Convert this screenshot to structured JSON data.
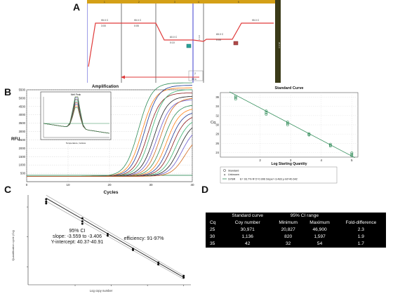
{
  "panel_labels": {
    "a": "A",
    "b": "B",
    "c": "C",
    "d": "D"
  },
  "panel_a": {
    "segment_numbers": [
      "1",
      "2",
      "3",
      "4",
      "5"
    ],
    "steps": [
      {
        "temp": "95.0 C",
        "time": "3:00"
      },
      {
        "temp": "95.0 C",
        "time": "0:05"
      },
      {
        "temp": "60.0 C",
        "time": "0:10"
      },
      {
        "temp": "65.0 C",
        "time": "0:05"
      },
      {
        "temp": "95.0 C",
        "time": ""
      }
    ],
    "loop_label": "2",
    "loop_count": "39 x",
    "gradient_label": "0.5 C",
    "end_label": "95.0 C"
  },
  "amplification": {
    "title": "Amplification",
    "ylabel": "RFU",
    "xlabel": "Cycles",
    "y_ticks": [
      "500",
      "1000",
      "1500",
      "2000",
      "2500",
      "3000",
      "3500",
      "4000",
      "4500",
      "5000",
      "5500"
    ],
    "x_ticks": [
      "0",
      "10",
      "20",
      "30",
      "40"
    ],
    "inset_title": "Melt Peak",
    "inset_xlabel": "Temperature, Celsius"
  },
  "standard_curve_b": {
    "title": "Standard Curve",
    "ylabel": "Cq",
    "xlabel": "Log Starting Quantity",
    "legend": {
      "standard": "Standard",
      "unknown": "Unknown",
      "series": "SYBR",
      "equation": "E= 93.7% R^2=0.996 Slope=-3.483 y-int=40.642"
    }
  },
  "chart_data": [
    {
      "type": "line",
      "title": "Amplification",
      "xlabel": "Cycles",
      "ylabel": "RFU",
      "xlim": [
        0,
        40
      ],
      "ylim": [
        0,
        5500
      ],
      "x_ticks": [
        0,
        10,
        20,
        30,
        40
      ],
      "y_ticks": [
        500,
        1000,
        1500,
        2000,
        2500,
        3000,
        3500,
        4000,
        4500,
        5000,
        5500
      ],
      "threshold": 380,
      "colors": [
        "#2e8b57",
        "#ff7f0e",
        "#1f3a93",
        "#8b1a1a",
        "#3cb371",
        "#222222",
        "#6a5acd",
        "#d2691e"
      ],
      "series": [
        {
          "midpoint": 27.0,
          "plateau": 5600
        },
        {
          "midpoint": 27.8,
          "plateau": 5300
        },
        {
          "midpoint": 28.5,
          "plateau": 5450
        },
        {
          "midpoint": 29.2,
          "plateau": 5000
        },
        {
          "midpoint": 30.0,
          "plateau": 5200
        },
        {
          "midpoint": 30.8,
          "plateau": 4800
        },
        {
          "midpoint": 31.5,
          "plateau": 4600
        },
        {
          "midpoint": 32.3,
          "plateau": 4700
        },
        {
          "midpoint": 33.0,
          "plateau": 4300
        },
        {
          "midpoint": 33.8,
          "plateau": 4100
        },
        {
          "midpoint": 34.5,
          "plateau": 3900
        },
        {
          "midpoint": 35.2,
          "plateau": 3700
        },
        {
          "midpoint": 36.0,
          "plateau": 3500
        },
        {
          "midpoint": 36.8,
          "plateau": 3300
        },
        {
          "midpoint": 37.5,
          "plateau": 3000
        },
        {
          "midpoint": 38.2,
          "plateau": 2500
        }
      ]
    },
    {
      "type": "scatter",
      "title": "Standard Curve",
      "xlabel": "Log Starting Quantity",
      "ylabel": "Cq",
      "xlim": [
        0.7,
        5.2
      ],
      "ylim": [
        23,
        37
      ],
      "x_ticks": [
        2,
        3,
        4,
        5
      ],
      "y_ticks": [
        24,
        26,
        28,
        30,
        32,
        34,
        36
      ],
      "fit": {
        "slope": -3.483,
        "intercept": 40.642
      },
      "points": [
        {
          "x": 1.2,
          "y": 35.6
        },
        {
          "x": 1.2,
          "y": 36.2
        },
        {
          "x": 1.2,
          "y": 35.9
        },
        {
          "x": 2.2,
          "y": 33.0
        },
        {
          "x": 2.2,
          "y": 32.6
        },
        {
          "x": 2.2,
          "y": 32.3
        },
        {
          "x": 2.9,
          "y": 30.6
        },
        {
          "x": 2.9,
          "y": 30.3
        },
        {
          "x": 2.9,
          "y": 30.0
        },
        {
          "x": 3.6,
          "y": 28.1
        },
        {
          "x": 3.6,
          "y": 27.8
        },
        {
          "x": 3.6,
          "y": 27.9
        },
        {
          "x": 4.3,
          "y": 25.8
        },
        {
          "x": 4.3,
          "y": 25.4
        },
        {
          "x": 4.3,
          "y": 25.6
        },
        {
          "x": 5.0,
          "y": 23.6
        },
        {
          "x": 5.0,
          "y": 23.3
        },
        {
          "x": 5.0,
          "y": 23.9
        }
      ]
    },
    {
      "type": "scatter",
      "xlabel": "Log copy number",
      "ylabel": "Quantification cycle (Cq)",
      "xlim": [
        0.7,
        5.2
      ],
      "ylim": [
        22,
        37
      ],
      "fit": {
        "slope": -3.48,
        "intercept": 40.64
      },
      "points": [
        {
          "x": 1.2,
          "y": 36.3
        },
        {
          "x": 1.2,
          "y": 35.9
        },
        {
          "x": 1.2,
          "y": 35.6
        },
        {
          "x": 2.2,
          "y": 33.1
        },
        {
          "x": 2.2,
          "y": 32.6
        },
        {
          "x": 2.2,
          "y": 32.2
        },
        {
          "x": 2.9,
          "y": 30.5
        },
        {
          "x": 2.9,
          "y": 30.2
        },
        {
          "x": 3.6,
          "y": 28.0
        },
        {
          "x": 3.6,
          "y": 27.8
        },
        {
          "x": 4.3,
          "y": 25.7
        },
        {
          "x": 4.3,
          "y": 25.4
        },
        {
          "x": 5.0,
          "y": 23.5
        },
        {
          "x": 5.0,
          "y": 23.2
        }
      ]
    }
  ],
  "panel_c": {
    "ylabel": "Quantification cycle (Cq)",
    "xlabel": "Log copy number",
    "ci_title": "95% CI",
    "slope_text": "slope: -3.559 to -3.406",
    "intercept_text": "Y-intercept: 40.37-40.91",
    "efficiency_text": "efficiency: 91-97%"
  },
  "panel_d": {
    "header_top": [
      "",
      "Standard curve",
      "95% CI range",
      "",
      ""
    ],
    "header": [
      "Cq",
      "Coy number",
      "Minimum",
      "Maximum",
      "Fold-difference"
    ],
    "rows": [
      [
        "25",
        "30,971",
        "20,827",
        "46,900",
        "2.3"
      ],
      [
        "30",
        "1,136",
        "820",
        "1,597",
        "1.9"
      ],
      [
        "35",
        "42",
        "32",
        "54",
        "1.7"
      ]
    ]
  }
}
